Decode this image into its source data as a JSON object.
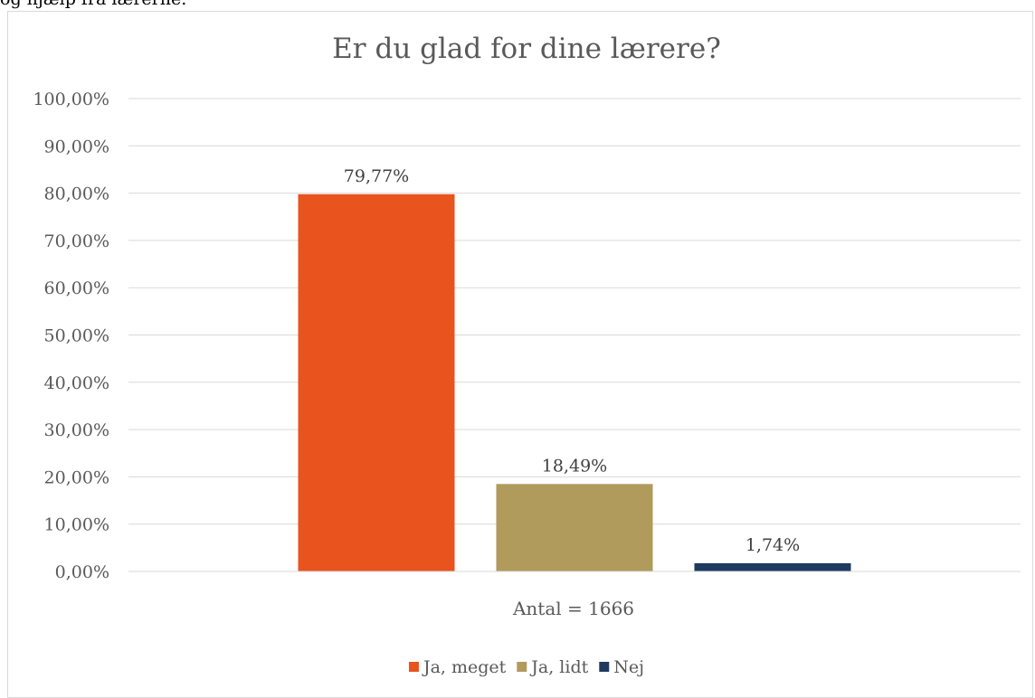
{
  "page_header": {
    "cut_off_text": "og hjælp fra lærerne."
  },
  "chart_data": {
    "type": "bar",
    "title": "Er du glad for dine lærere?",
    "xlabel": "Antal = 1666",
    "ylabel": "",
    "ylim": [
      0,
      100
    ],
    "ytick_step": 10,
    "y_tick_labels": [
      "0,00%",
      "10,00%",
      "20,00%",
      "30,00%",
      "40,00%",
      "50,00%",
      "60,00%",
      "70,00%",
      "80,00%",
      "90,00%",
      "100,00%"
    ],
    "categories": [
      "Antal = 1666"
    ],
    "grid": true,
    "legend_position": "bottom",
    "series": [
      {
        "name": "Ja, meget",
        "values": [
          79.77
        ],
        "label": "79,77%",
        "color": "#E8531E"
      },
      {
        "name": "Ja, lidt",
        "values": [
          18.49
        ],
        "label": "18,49%",
        "color": "#B09A5C"
      },
      {
        "name": "Nej",
        "values": [
          1.74
        ],
        "label": "1,74%",
        "color": "#1F3A5F"
      }
    ]
  }
}
